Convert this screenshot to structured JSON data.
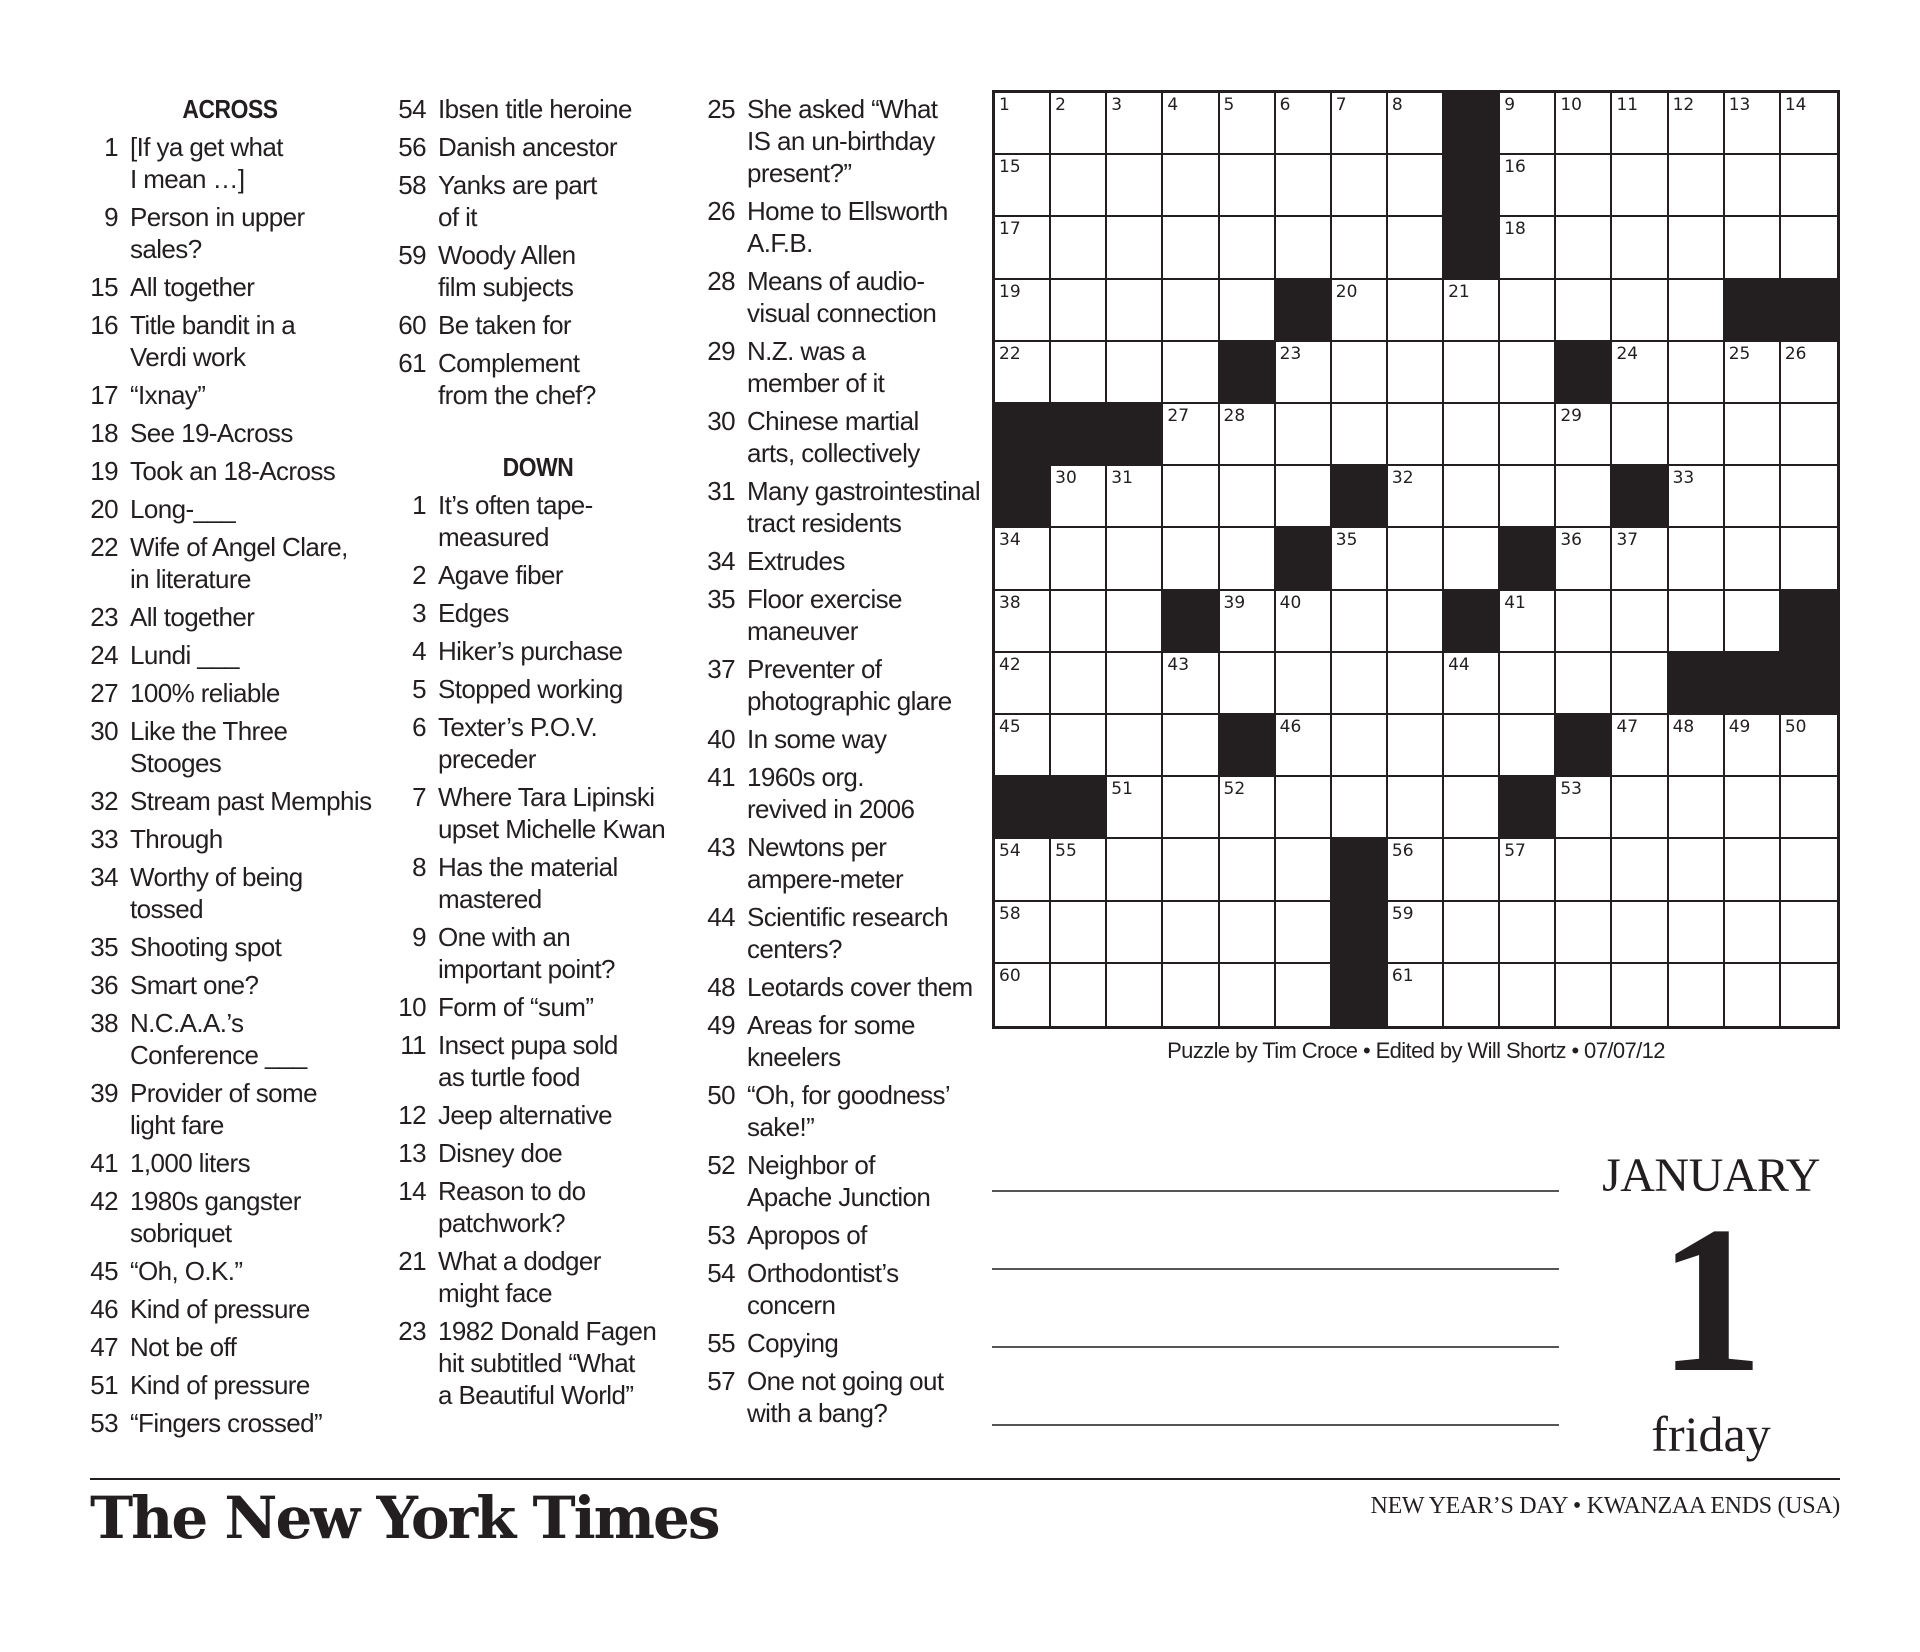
{
  "across_header": "ACROSS",
  "down_header": "DOWN",
  "across": [
    {
      "n": "1",
      "t": "[If ya get what\nI mean …]"
    },
    {
      "n": "9",
      "t": "Person in upper\nsales?"
    },
    {
      "n": "15",
      "t": "All together"
    },
    {
      "n": "16",
      "t": "Title bandit in a\nVerdi work"
    },
    {
      "n": "17",
      "t": "“Ixnay”"
    },
    {
      "n": "18",
      "t": "See 19-Across"
    },
    {
      "n": "19",
      "t": "Took an 18-Across"
    },
    {
      "n": "20",
      "t": "Long-___"
    },
    {
      "n": "22",
      "t": "Wife of Angel Clare,\nin literature"
    },
    {
      "n": "23",
      "t": "All together"
    },
    {
      "n": "24",
      "t": "Lundi ___"
    },
    {
      "n": "27",
      "t": "100% reliable"
    },
    {
      "n": "30",
      "t": "Like the Three\nStooges"
    },
    {
      "n": "32",
      "t": "Stream past Memphis"
    },
    {
      "n": "33",
      "t": "Through"
    },
    {
      "n": "34",
      "t": "Worthy of being\ntossed"
    },
    {
      "n": "35",
      "t": "Shooting spot"
    },
    {
      "n": "36",
      "t": "Smart one?"
    },
    {
      "n": "38",
      "t": "N.C.A.A.’s\nConference ___"
    },
    {
      "n": "39",
      "t": "Provider of some\nlight fare"
    },
    {
      "n": "41",
      "t": "1,000 liters"
    },
    {
      "n": "42",
      "t": "1980s gangster\nsobriquet"
    },
    {
      "n": "45",
      "t": "“Oh, O.K.”"
    },
    {
      "n": "46",
      "t": "Kind of pressure"
    },
    {
      "n": "47",
      "t": "Not be off"
    },
    {
      "n": "51",
      "t": "Kind of pressure"
    },
    {
      "n": "53",
      "t": "“Fingers crossed”"
    },
    {
      "n": "54",
      "t": "Ibsen title heroine"
    },
    {
      "n": "56",
      "t": "Danish ancestor"
    },
    {
      "n": "58",
      "t": "Yanks are part\nof it"
    },
    {
      "n": "59",
      "t": "Woody Allen\nfilm subjects"
    },
    {
      "n": "60",
      "t": "Be taken for"
    },
    {
      "n": "61",
      "t": "Complement\nfrom the chef?"
    }
  ],
  "down": [
    {
      "n": "1",
      "t": "It’s often tape-\nmeasured"
    },
    {
      "n": "2",
      "t": "Agave fiber"
    },
    {
      "n": "3",
      "t": "Edges"
    },
    {
      "n": "4",
      "t": "Hiker’s purchase"
    },
    {
      "n": "5",
      "t": "Stopped working"
    },
    {
      "n": "6",
      "t": "Texter’s P.O.V.\npreceder"
    },
    {
      "n": "7",
      "t": "Where Tara Lipinski\nupset Michelle Kwan"
    },
    {
      "n": "8",
      "t": "Has the material\nmastered"
    },
    {
      "n": "9",
      "t": "One with an\nimportant point?"
    },
    {
      "n": "10",
      "t": "Form of “sum”"
    },
    {
      "n": "11",
      "t": "Insect pupa sold\nas turtle food"
    },
    {
      "n": "12",
      "t": "Jeep alternative"
    },
    {
      "n": "13",
      "t": "Disney doe"
    },
    {
      "n": "14",
      "t": "Reason to do\npatchwork?"
    },
    {
      "n": "21",
      "t": "What a dodger\nmight face"
    },
    {
      "n": "23",
      "t": "1982 Donald Fagen\nhit subtitled “What\na Beautiful World”"
    },
    {
      "n": "25",
      "t": "She asked “What\nIS an un-birthday\npresent?”"
    },
    {
      "n": "26",
      "t": "Home to Ellsworth\nA.F.B."
    },
    {
      "n": "28",
      "t": "Means of audio-\nvisual connection"
    },
    {
      "n": "29",
      "t": "N.Z. was a\nmember of it"
    },
    {
      "n": "30",
      "t": "Chinese martial\narts, collectively"
    },
    {
      "n": "31",
      "t": "Many gastrointestinal\ntract residents"
    },
    {
      "n": "34",
      "t": "Extrudes"
    },
    {
      "n": "35",
      "t": "Floor exercise\nmaneuver"
    },
    {
      "n": "37",
      "t": "Preventer of\nphotographic glare"
    },
    {
      "n": "40",
      "t": "In some way"
    },
    {
      "n": "41",
      "t": "1960s org.\nrevived in 2006"
    },
    {
      "n": "43",
      "t": "Newtons per\nampere-meter"
    },
    {
      "n": "44",
      "t": "Scientific research\ncenters?"
    },
    {
      "n": "48",
      "t": "Leotards cover them"
    },
    {
      "n": "49",
      "t": "Areas for some\nkneelers"
    },
    {
      "n": "50",
      "t": "“Oh, for goodness’\nsake!”"
    },
    {
      "n": "52",
      "t": "Neighbor of\nApache Junction"
    },
    {
      "n": "53",
      "t": "Apropos of"
    },
    {
      "n": "54",
      "t": "Orthodontist’s\nconcern"
    },
    {
      "n": "55",
      "t": "Copying"
    },
    {
      "n": "57",
      "t": "One not going out\nwith a bang?"
    }
  ],
  "grid": [
    "........#......",
    "........#......",
    "........#......",
    ".....#.......##",
    "....#.....#....",
    "###............",
    "#.....#....#...",
    ".....#...#.....",
    "...#....#.....#",
    "............###",
    "....#.....#....",
    "##.......#.....",
    "......#........",
    "......#........",
    "......#........"
  ],
  "credit": "Puzzle by Tim Croce • Edited by Will Shortz • 07/07/12",
  "calendar": {
    "month": "JANUARY",
    "day": "1",
    "weekday": "friday"
  },
  "holiday": "NEW YEAR’S DAY • KWANZAA ENDS (USA)",
  "logo": "The New York Times"
}
